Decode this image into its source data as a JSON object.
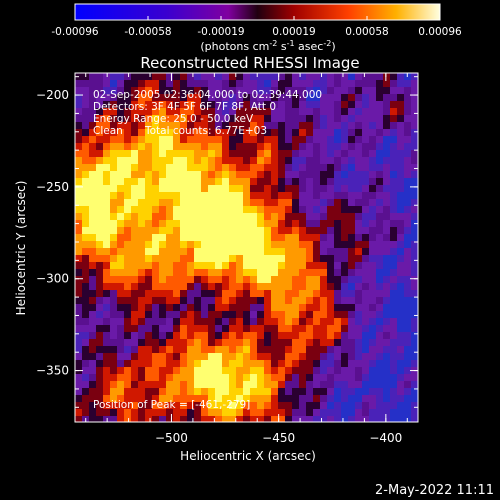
{
  "title": "Reconstructed RHESSI Image",
  "colorbar": {
    "ticks": [
      "-0.00096",
      "-0.00058",
      "-0.00019",
      "0.00019",
      "0.00058",
      "0.00096"
    ],
    "units_parts": [
      "(photons cm",
      "-2",
      " s",
      "-1",
      " asec",
      "-2",
      ")"
    ]
  },
  "annotations": {
    "time_range": "02-Sep-2005 02:36:04.000 to 02:39:44.000",
    "detectors": "Detectors: 3F 4F 5F 6F 7F 8F, Att 0",
    "energy_range": "Energy Range: 25.0 - 50.0 keV",
    "method": "Clean",
    "total_counts": "Total counts: 6.77E+03",
    "peak": "Position of Peak = [-461,-279]"
  },
  "axes": {
    "xlabel": "Heliocentric X (arcsec)",
    "ylabel": "Heliocentric Y (arcsec)",
    "xticks": [
      -500,
      -450,
      -400
    ],
    "yticks": [
      -200,
      -250,
      -300,
      -350
    ],
    "xlim": [
      -545,
      -385
    ],
    "ylim": [
      -378,
      -188
    ]
  },
  "footer_date": "2-May-2022 11:11"
}
